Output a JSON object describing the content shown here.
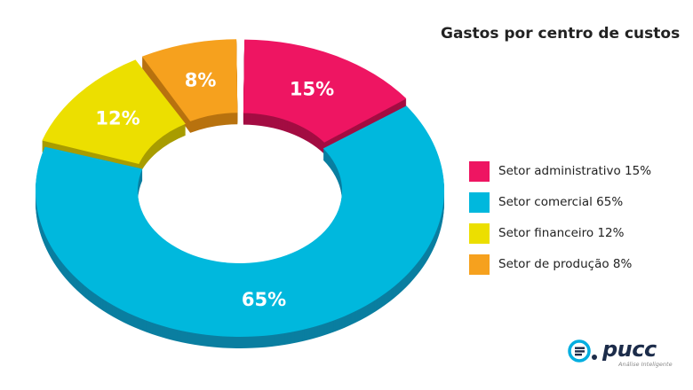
{
  "chart_data": {
    "type": "pie",
    "title": "Gastos por centro de custos",
    "categories": [
      "Setor administrativo",
      "Setor comercial",
      "Setor financeiro",
      "Setor de produção"
    ],
    "values": [
      15,
      65,
      12,
      8
    ],
    "slice_labels": [
      "15%",
      "65%",
      "12%",
      "8%"
    ],
    "legend_labels": [
      "Setor administrativo 15%",
      "Setor comercial 65%",
      "Setor financeiro 12%",
      "Setor de produção 8%"
    ],
    "colors": [
      "#ee1562",
      "#00b8dd",
      "#ecdf00",
      "#f6a11e"
    ],
    "shadow_colors": [
      "#a30d42",
      "#0a7ea0",
      "#a89c00",
      "#b8720f"
    ],
    "donut": true,
    "exploded": true,
    "legend_position": "right"
  },
  "logo": {
    "name": "pucc",
    "tagline": "Análise Inteligente",
    "icon": "pucc-logo-icon"
  }
}
